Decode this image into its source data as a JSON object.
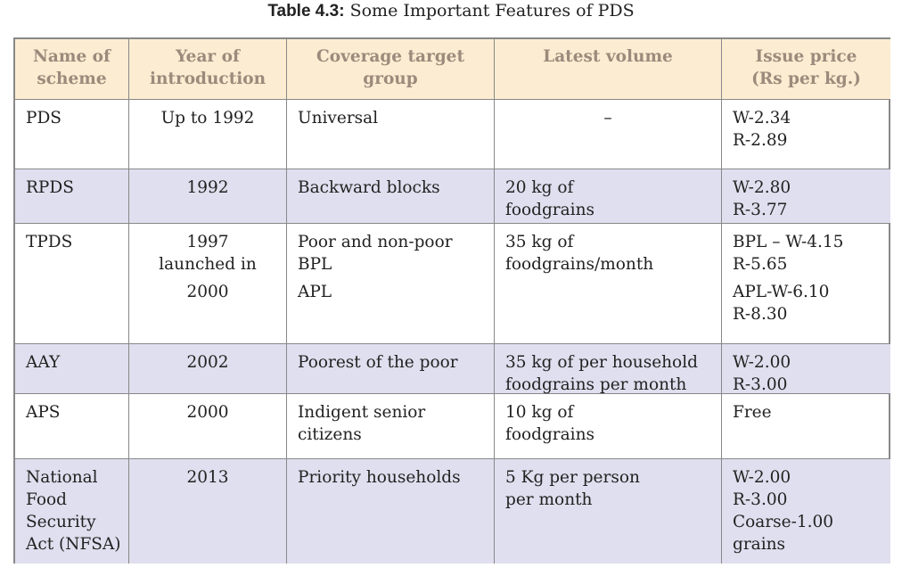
{
  "title": {
    "label": "Table 4.3:",
    "text": "Some Important Features of PDS"
  },
  "table": {
    "header": [
      [
        "Name of",
        "scheme"
      ],
      [
        "Year of",
        "introduction"
      ],
      [
        "Coverage target",
        "group"
      ],
      [
        "Latest volume"
      ],
      [
        "Issue price",
        "(Rs per kg.)"
      ]
    ],
    "rows": [
      [
        [
          "PDS"
        ],
        [
          "Up to 1992"
        ],
        [
          "Universal"
        ],
        [
          "–"
        ],
        [
          "W-2.34",
          "R-2.89"
        ]
      ],
      [
        [
          "RPDS"
        ],
        [
          "1992"
        ],
        [
          "Backward blocks"
        ],
        [
          "20 kg of",
          "foodgrains"
        ],
        [
          "W-2.80",
          "R-3.77"
        ]
      ],
      [
        [
          "TPDS"
        ],
        [
          "1997",
          "launched in",
          "2000"
        ],
        [
          "Poor and non-poor",
          "BPL",
          "APL"
        ],
        [
          "35 kg of",
          "foodgrains/month"
        ],
        [
          "BPL – W-4.15",
          "R-5.65",
          "APL-W-6.10",
          "R-8.30"
        ]
      ],
      [
        [
          "AAY"
        ],
        [
          "2002"
        ],
        [
          "Poorest of the poor"
        ],
        [
          "35 kg of per household",
          "foodgrains per month"
        ],
        [
          "W-2.00",
          "R-3.00"
        ]
      ],
      [
        [
          "APS"
        ],
        [
          "2000"
        ],
        [
          "Indigent senior",
          "citizens"
        ],
        [
          "10 kg of",
          "foodgrains"
        ],
        [
          "Free"
        ]
      ],
      [
        [
          "National",
          "Food",
          "Security",
          "Act (NFSA)"
        ],
        [
          "2013"
        ],
        [
          "Priority households"
        ],
        [
          "5 Kg per person",
          "per month"
        ],
        [
          "W-2.00",
          "R-3.00",
          "Coarse-1.00",
          "grains"
        ]
      ]
    ]
  }
}
